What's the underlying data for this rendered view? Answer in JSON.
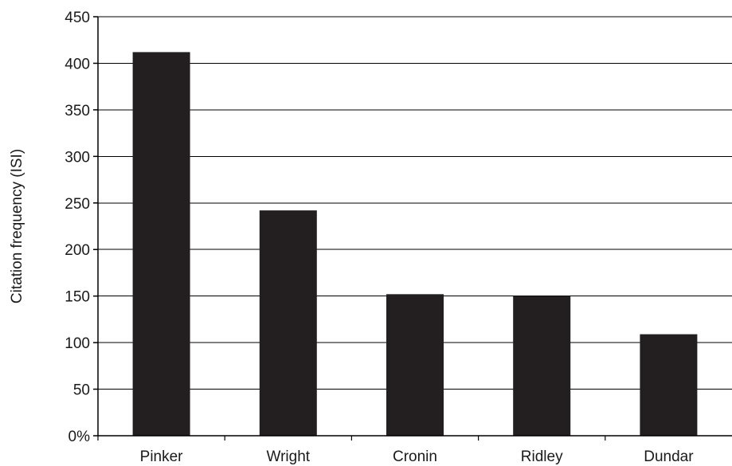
{
  "chart_data": {
    "type": "bar",
    "title": "",
    "xlabel": "",
    "ylabel": "Citation frequency (ISI)",
    "categories": [
      "Pinker",
      "Wright",
      "Cronin",
      "Ridley",
      "Dundar"
    ],
    "values": [
      412,
      242,
      152,
      150,
      109
    ],
    "ylim": [
      0,
      450
    ],
    "yticks": [
      0,
      50,
      100,
      150,
      200,
      250,
      300,
      350,
      400,
      450
    ],
    "ytick_labels": [
      "0%",
      "50",
      "100",
      "150",
      "200",
      "250",
      "300",
      "350",
      "400",
      "450"
    ],
    "grid": true,
    "legend": "none",
    "bar_color": "#231f20",
    "grid_color": "#000000"
  }
}
